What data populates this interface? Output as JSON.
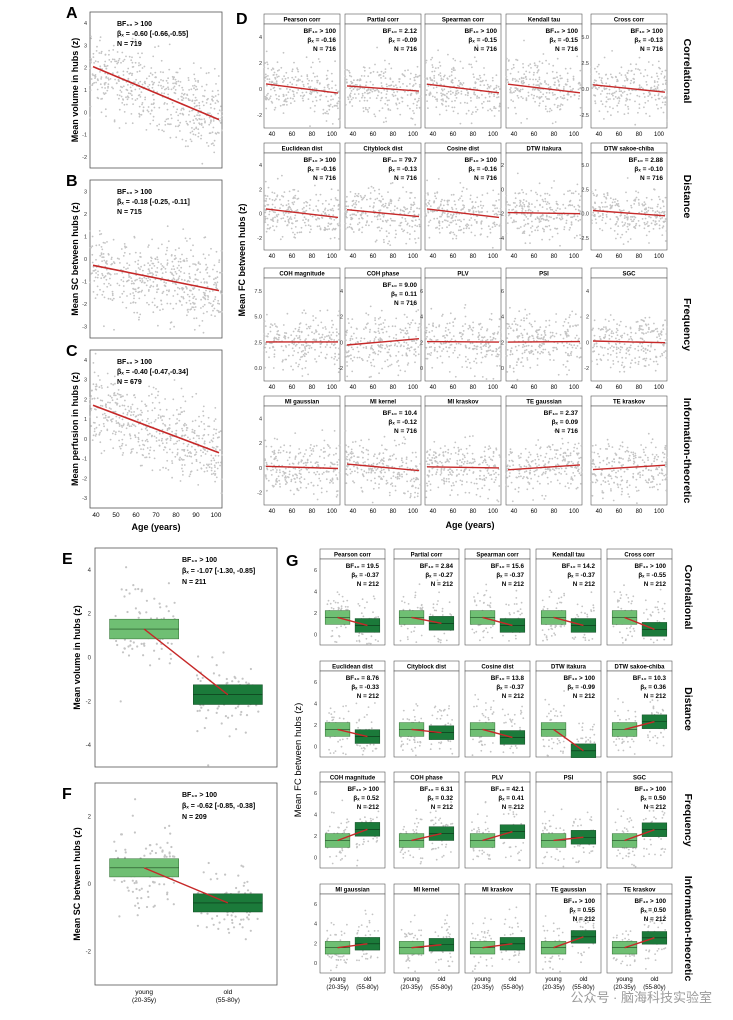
{
  "colors": {
    "points": "#c4c4c4",
    "line": "#c62828",
    "box_young": "#6fbf73",
    "box_old": "#1b7a3a",
    "panel_border": "#555555",
    "strip_border": "#555555"
  },
  "panels": {
    "A": {
      "letter": "A",
      "ylabel": "Mean volume in hubs (z)",
      "stats": [
        "BF₁₀ > 100",
        "βₓ = -0.60 [-0.66,-0.55]",
        "N = 719"
      ],
      "yticks": [
        "4",
        "3",
        "2",
        "1",
        "0",
        "-1",
        "-2"
      ]
    },
    "B": {
      "letter": "B",
      "ylabel": "Mean SC between hubs (z)",
      "stats": [
        "BF₁₀ > 100",
        "βₓ = -0.18 [-0.25, -0.11]",
        "N = 715"
      ],
      "yticks": [
        "3",
        "2",
        "1",
        "0",
        "-1",
        "-2",
        "-3"
      ]
    },
    "C": {
      "letter": "C",
      "ylabel": "Mean perfusion in hubs (z)",
      "stats": [
        "BF₁₀ > 100",
        "βₓ = -0.40 [-0.47,-0.34]",
        "N = 679"
      ],
      "yticks": [
        "4",
        "3",
        "2",
        "1",
        "0",
        "-1",
        "-2",
        "-3"
      ],
      "xticks": [
        "40",
        "50",
        "60",
        "70",
        "80",
        "90",
        "100"
      ],
      "xlabel": "Age (years)"
    },
    "D": {
      "letter": "D",
      "ylabel": "Mean FC between hubs (z)",
      "xlabel": "Age (years)",
      "xticks": [
        "40",
        "60",
        "80",
        "100"
      ],
      "rows": [
        {
          "group": "Correlational",
          "yticks": [
            "4",
            "2",
            "0",
            "-2"
          ],
          "cells": [
            {
              "title": "Pearson corr",
              "stats": [
                "BF₁₀ > 100",
                "βₓ = -0.16",
                "N = 716"
              ],
              "slope": -0.16
            },
            {
              "title": "Partial corr",
              "stats": [
                "BF₁₀ = 2.12",
                "βₓ = -0.09",
                "N = 716"
              ],
              "slope": -0.09
            },
            {
              "title": "Spearman corr",
              "stats": [
                "BF₁₀ > 100",
                "βₓ = -0.15",
                "N = 716"
              ],
              "slope": -0.15
            },
            {
              "title": "Kendall tau",
              "stats": [
                "BF₁₀ > 100",
                "βₓ = -0.15",
                "N = 716"
              ],
              "slope": -0.15
            },
            {
              "title": "Cross corr",
              "stats": [
                "BF₁₀ > 100",
                "βₓ = -0.13",
                "N = 716"
              ],
              "slope": -0.13,
              "yticks": [
                "5.0",
                "2.5",
                "0.0",
                "-2.5"
              ]
            }
          ]
        },
        {
          "group": "Distance",
          "yticks": [
            "4",
            "2",
            "0",
            "-2"
          ],
          "cells": [
            {
              "title": "Euclidean dist",
              "stats": [
                "BF₁₀ > 100",
                "βₓ = -0.16",
                "N = 716"
              ],
              "slope": -0.16
            },
            {
              "title": "Cityblock dist",
              "stats": [
                "BF₁₀ = 79.7",
                "βₓ = -0.13",
                "N = 716"
              ],
              "slope": -0.13
            },
            {
              "title": "Cosine dist",
              "stats": [
                "BF₁₀ > 100",
                "βₓ = -0.16",
                "N = 716"
              ],
              "slope": -0.16
            },
            {
              "title": "DTW itakura",
              "stats": [],
              "slope": -0.02,
              "yticks": [
                "2",
                "0",
                "-2",
                "-4"
              ]
            },
            {
              "title": "DTW sakoe-chiba",
              "stats": [
                "BF₁₀ = 2.88",
                "βₓ = -0.10",
                "N = 716"
              ],
              "slope": -0.1,
              "yticks": [
                "5.0",
                "2.5",
                "0.0",
                "-2.5"
              ]
            }
          ]
        },
        {
          "group": "Frequency",
          "yticks": [
            "7.5",
            "5.0",
            "2.5",
            "0.0"
          ],
          "cells": [
            {
              "title": "COH magnitude",
              "stats": [],
              "slope": 0.0
            },
            {
              "title": "COH phase",
              "stats": [
                "BF₁₀ = 9.00",
                "βₓ = 0.11",
                "N = 716"
              ],
              "slope": 0.11,
              "yticks": [
                "4",
                "2",
                "0",
                "-2"
              ]
            },
            {
              "title": "PLV",
              "stats": [],
              "slope": -0.01,
              "yticks": [
                "6",
                "4",
                "2",
                "0"
              ]
            },
            {
              "title": "PSI",
              "stats": [],
              "slope": 0.01,
              "yticks": [
                "6",
                "4",
                "2",
                "0"
              ]
            },
            {
              "title": "SGC",
              "stats": [],
              "slope": -0.03,
              "yticks": [
                "4",
                "2",
                "0",
                "-2"
              ]
            }
          ]
        },
        {
          "group": "Information-theoretic",
          "yticks": [
            "4",
            "2",
            "0",
            "-2"
          ],
          "cells": [
            {
              "title": "MI gaussian",
              "stats": [],
              "slope": -0.04
            },
            {
              "title": "MI kernel",
              "stats": [
                "BF₁₀ = 10.4",
                "βₓ = -0.12",
                "N = 716"
              ],
              "slope": -0.12
            },
            {
              "title": "MI kraskov",
              "stats": [],
              "slope": -0.02
            },
            {
              "title": "TE gaussian",
              "stats": [
                "BF₁₀ = 2.37",
                "βₓ = 0.09",
                "N = 716"
              ],
              "slope": 0.09
            },
            {
              "title": "TE kraskov",
              "stats": [],
              "slope": 0.08
            }
          ]
        }
      ]
    },
    "E": {
      "letter": "E",
      "ylabel": "Mean volume in hubs (z)",
      "stats": [
        "BF₁₀ > 100",
        "βₓ = -1.07 [-1.30, -0.85]",
        "N = 211"
      ],
      "yticks": [
        "4",
        "2",
        "0",
        "-2",
        "-4"
      ]
    },
    "F": {
      "letter": "F",
      "ylabel": "Mean SC between hubs (z)",
      "stats": [
        "BF₁₀ > 100",
        "βₓ = -0.62 [-0.85, -0.38]",
        "N = 209"
      ],
      "yticks": [
        "2",
        "0",
        "-2"
      ],
      "xticks": [
        {
          "l1": "young",
          "l2": "(20-35y)"
        },
        {
          "l1": "old",
          "l2": "(55-80y)"
        }
      ]
    },
    "G": {
      "letter": "G",
      "ylabel": "Mean FC between hubs (z)",
      "yticks": [
        "6",
        "4",
        "2",
        "0"
      ],
      "xticks": [
        {
          "l1": "young",
          "l2": "(20-35y)"
        },
        {
          "l1": "old",
          "l2": "(55-80y)"
        }
      ],
      "rows": [
        {
          "group": "Correlational",
          "cells": [
            {
              "title": "Pearson corr",
              "stats": [
                "BF₁₀ = 19.5",
                "βₓ = -0.37",
                "N = 212"
              ],
              "beta": -0.37
            },
            {
              "title": "Partial corr",
              "stats": [
                "BF₁₀ = 2.84",
                "βₓ = -0.27",
                "N = 212"
              ],
              "beta": -0.27
            },
            {
              "title": "Spearman corr",
              "stats": [
                "BF₁₀ = 15.6",
                "βₓ = -0.37",
                "N = 212"
              ],
              "beta": -0.37
            },
            {
              "title": "Kendall tau",
              "stats": [
                "BF₁₀ = 14.2",
                "βₓ = -0.37",
                "N = 212"
              ],
              "beta": -0.37
            },
            {
              "title": "Cross corr",
              "stats": [
                "BF₁₀ > 100",
                "βₓ = -0.55",
                "N = 212"
              ],
              "beta": -0.55
            }
          ]
        },
        {
          "group": "Distance",
          "cells": [
            {
              "title": "Euclidean dist",
              "stats": [
                "BF₁₀ = 8.76",
                "βₓ = -0.33",
                "N = 212"
              ],
              "beta": -0.33
            },
            {
              "title": "Cityblock dist",
              "stats": [],
              "beta": -0.15
            },
            {
              "title": "Cosine dist",
              "stats": [
                "BF₁₀ = 13.8",
                "βₓ = -0.37",
                "N = 212"
              ],
              "beta": -0.37
            },
            {
              "title": "DTW itakura",
              "stats": [
                "BF₁₀ > 100",
                "βₓ = -0.99",
                "N = 212"
              ],
              "beta": -0.99
            },
            {
              "title": "DTW sakoe-chiba",
              "stats": [
                "BF₁₀ = 10.3",
                "βₓ = 0.36",
                "N = 212"
              ],
              "beta": 0.36
            }
          ]
        },
        {
          "group": "Frequency",
          "cells": [
            {
              "title": "COH magnitude",
              "stats": [
                "BF₁₀ > 100",
                "βₓ = 0.52",
                "N = 212"
              ],
              "beta": 0.52
            },
            {
              "title": "COH phase",
              "stats": [
                "BF₁₀ = 6.31",
                "βₓ = 0.32",
                "N = 212"
              ],
              "beta": 0.32
            },
            {
              "title": "PLV",
              "stats": [
                "BF₁₀ = 42.1",
                "βₓ = 0.41",
                "N = 212"
              ],
              "beta": 0.41
            },
            {
              "title": "PSI",
              "stats": [],
              "beta": 0.15
            },
            {
              "title": "SGC",
              "stats": [
                "BF₁₀ > 100",
                "βₓ = 0.50",
                "N = 212"
              ],
              "beta": 0.5
            }
          ]
        },
        {
          "group": "Information-theoretic",
          "cells": [
            {
              "title": "MI gaussian",
              "stats": [],
              "beta": 0.2
            },
            {
              "title": "MI kernel",
              "stats": [],
              "beta": 0.15
            },
            {
              "title": "MI kraskov",
              "stats": [],
              "beta": 0.2
            },
            {
              "title": "TE gaussian",
              "stats": [
                "BF₁₀ > 100",
                "βₓ = 0.55",
                "N = 212"
              ],
              "beta": 0.55
            },
            {
              "title": "TE kraskov",
              "stats": [
                "BF₁₀ > 100",
                "βₓ = 0.50",
                "N = 212"
              ],
              "beta": 0.5
            }
          ]
        }
      ]
    }
  },
  "watermark": "公众号 · 脑海科技实验室"
}
